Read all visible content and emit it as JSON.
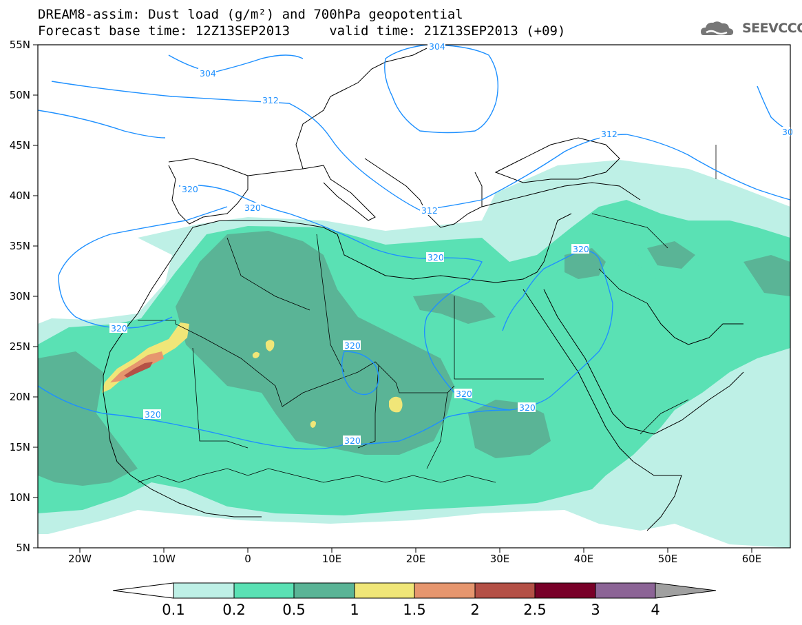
{
  "header": {
    "title_line1": "DREAM8-assim: Dust load (g/m²) and 700hPa geopotential",
    "title_line2": "Forecast base time: 12Z13SEP2013     valid time: 21Z13SEP2013 (+09)",
    "logo_text": "SEEVCCC"
  },
  "map": {
    "lat_labels": [
      "55N",
      "50N",
      "45N",
      "40N",
      "35N",
      "30N",
      "25N",
      "20N",
      "15N",
      "10N",
      "5N"
    ],
    "lon_labels": [
      "20W",
      "10W",
      "0",
      "10E",
      "20E",
      "30E",
      "40E",
      "50E",
      "60E"
    ],
    "contour_color": "#1E90FF",
    "contour_labels": [
      {
        "text": "304",
        "anchor": "northwest-europe"
      },
      {
        "text": "304",
        "anchor": "central-europe"
      },
      {
        "text": "312",
        "anchor": "france"
      },
      {
        "text": "312",
        "anchor": "black-sea"
      },
      {
        "text": "320",
        "anchor": "iberia"
      },
      {
        "text": "320",
        "anchor": "gibraltar"
      },
      {
        "text": "312",
        "anchor": "aegean"
      },
      {
        "text": "320",
        "anchor": "levant"
      },
      {
        "text": "320",
        "anchor": "libya"
      },
      {
        "text": "320",
        "anchor": "western-sahara"
      },
      {
        "text": "320",
        "anchor": "chad"
      },
      {
        "text": "320",
        "anchor": "sudan"
      },
      {
        "text": "320",
        "anchor": "ethiopia"
      },
      {
        "text": "320",
        "anchor": "mali"
      },
      {
        "text": "320",
        "anchor": "niger"
      },
      {
        "text": "30",
        "anchor": "east-edge"
      }
    ]
  },
  "colorbar": {
    "labels": [
      "0.1",
      "0.2",
      "0.5",
      "1",
      "1.5",
      "2",
      "2.5",
      "3",
      "4"
    ],
    "colors": [
      "#BEF0E6",
      "#5AE1B4",
      "#5AB496",
      "#F0E678",
      "#E6966E",
      "#B45046",
      "#780028",
      "#8C6496"
    ],
    "under_color": "#ffffff",
    "over_color": "#A0A0A0"
  },
  "dust_colors": {
    "light": "#BEF0E6",
    "medium": "#5AE1B4",
    "dark": "#5AB496",
    "yellow": "#F0E678",
    "orange": "#E6966E",
    "red": "#B45046"
  }
}
